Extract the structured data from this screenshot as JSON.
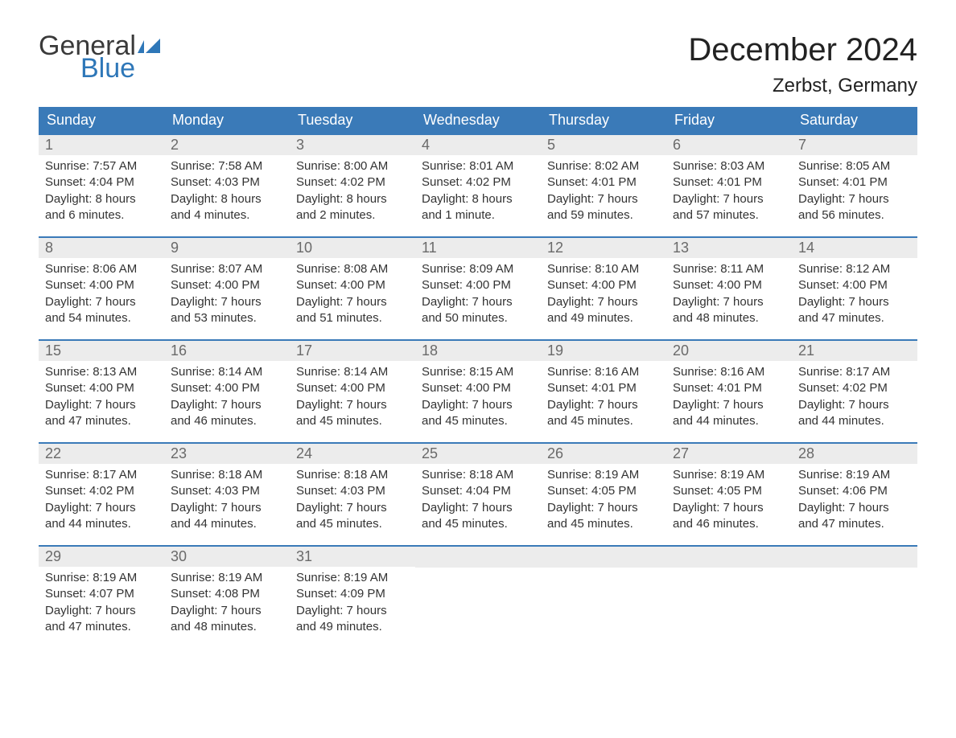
{
  "brand": {
    "part1": "General",
    "part2": "Blue",
    "icon_color": "#2e77b8",
    "text_color_dark": "#3a3a3a"
  },
  "title": "December 2024",
  "location": "Zerbst, Germany",
  "colors": {
    "header_bg": "#3a7ab8",
    "header_text": "#ffffff",
    "daynum_bg": "#ececec",
    "daynum_text": "#6a6a6a",
    "body_text": "#333333",
    "row_border": "#3a7ab8"
  },
  "weekdays": [
    "Sunday",
    "Monday",
    "Tuesday",
    "Wednesday",
    "Thursday",
    "Friday",
    "Saturday"
  ],
  "weeks": [
    [
      {
        "n": "1",
        "sunrise": "7:57 AM",
        "sunset": "4:04 PM",
        "daylight": "8 hours and 6 minutes."
      },
      {
        "n": "2",
        "sunrise": "7:58 AM",
        "sunset": "4:03 PM",
        "daylight": "8 hours and 4 minutes."
      },
      {
        "n": "3",
        "sunrise": "8:00 AM",
        "sunset": "4:02 PM",
        "daylight": "8 hours and 2 minutes."
      },
      {
        "n": "4",
        "sunrise": "8:01 AM",
        "sunset": "4:02 PM",
        "daylight": "8 hours and 1 minute."
      },
      {
        "n": "5",
        "sunrise": "8:02 AM",
        "sunset": "4:01 PM",
        "daylight": "7 hours and 59 minutes."
      },
      {
        "n": "6",
        "sunrise": "8:03 AM",
        "sunset": "4:01 PM",
        "daylight": "7 hours and 57 minutes."
      },
      {
        "n": "7",
        "sunrise": "8:05 AM",
        "sunset": "4:01 PM",
        "daylight": "7 hours and 56 minutes."
      }
    ],
    [
      {
        "n": "8",
        "sunrise": "8:06 AM",
        "sunset": "4:00 PM",
        "daylight": "7 hours and 54 minutes."
      },
      {
        "n": "9",
        "sunrise": "8:07 AM",
        "sunset": "4:00 PM",
        "daylight": "7 hours and 53 minutes."
      },
      {
        "n": "10",
        "sunrise": "8:08 AM",
        "sunset": "4:00 PM",
        "daylight": "7 hours and 51 minutes."
      },
      {
        "n": "11",
        "sunrise": "8:09 AM",
        "sunset": "4:00 PM",
        "daylight": "7 hours and 50 minutes."
      },
      {
        "n": "12",
        "sunrise": "8:10 AM",
        "sunset": "4:00 PM",
        "daylight": "7 hours and 49 minutes."
      },
      {
        "n": "13",
        "sunrise": "8:11 AM",
        "sunset": "4:00 PM",
        "daylight": "7 hours and 48 minutes."
      },
      {
        "n": "14",
        "sunrise": "8:12 AM",
        "sunset": "4:00 PM",
        "daylight": "7 hours and 47 minutes."
      }
    ],
    [
      {
        "n": "15",
        "sunrise": "8:13 AM",
        "sunset": "4:00 PM",
        "daylight": "7 hours and 47 minutes."
      },
      {
        "n": "16",
        "sunrise": "8:14 AM",
        "sunset": "4:00 PM",
        "daylight": "7 hours and 46 minutes."
      },
      {
        "n": "17",
        "sunrise": "8:14 AM",
        "sunset": "4:00 PM",
        "daylight": "7 hours and 45 minutes."
      },
      {
        "n": "18",
        "sunrise": "8:15 AM",
        "sunset": "4:00 PM",
        "daylight": "7 hours and 45 minutes."
      },
      {
        "n": "19",
        "sunrise": "8:16 AM",
        "sunset": "4:01 PM",
        "daylight": "7 hours and 45 minutes."
      },
      {
        "n": "20",
        "sunrise": "8:16 AM",
        "sunset": "4:01 PM",
        "daylight": "7 hours and 44 minutes."
      },
      {
        "n": "21",
        "sunrise": "8:17 AM",
        "sunset": "4:02 PM",
        "daylight": "7 hours and 44 minutes."
      }
    ],
    [
      {
        "n": "22",
        "sunrise": "8:17 AM",
        "sunset": "4:02 PM",
        "daylight": "7 hours and 44 minutes."
      },
      {
        "n": "23",
        "sunrise": "8:18 AM",
        "sunset": "4:03 PM",
        "daylight": "7 hours and 44 minutes."
      },
      {
        "n": "24",
        "sunrise": "8:18 AM",
        "sunset": "4:03 PM",
        "daylight": "7 hours and 45 minutes."
      },
      {
        "n": "25",
        "sunrise": "8:18 AM",
        "sunset": "4:04 PM",
        "daylight": "7 hours and 45 minutes."
      },
      {
        "n": "26",
        "sunrise": "8:19 AM",
        "sunset": "4:05 PM",
        "daylight": "7 hours and 45 minutes."
      },
      {
        "n": "27",
        "sunrise": "8:19 AM",
        "sunset": "4:05 PM",
        "daylight": "7 hours and 46 minutes."
      },
      {
        "n": "28",
        "sunrise": "8:19 AM",
        "sunset": "4:06 PM",
        "daylight": "7 hours and 47 minutes."
      }
    ],
    [
      {
        "n": "29",
        "sunrise": "8:19 AM",
        "sunset": "4:07 PM",
        "daylight": "7 hours and 47 minutes."
      },
      {
        "n": "30",
        "sunrise": "8:19 AM",
        "sunset": "4:08 PM",
        "daylight": "7 hours and 48 minutes."
      },
      {
        "n": "31",
        "sunrise": "8:19 AM",
        "sunset": "4:09 PM",
        "daylight": "7 hours and 49 minutes."
      },
      null,
      null,
      null,
      null
    ]
  ],
  "labels": {
    "sunrise": "Sunrise: ",
    "sunset": "Sunset: ",
    "daylight": "Daylight: "
  }
}
